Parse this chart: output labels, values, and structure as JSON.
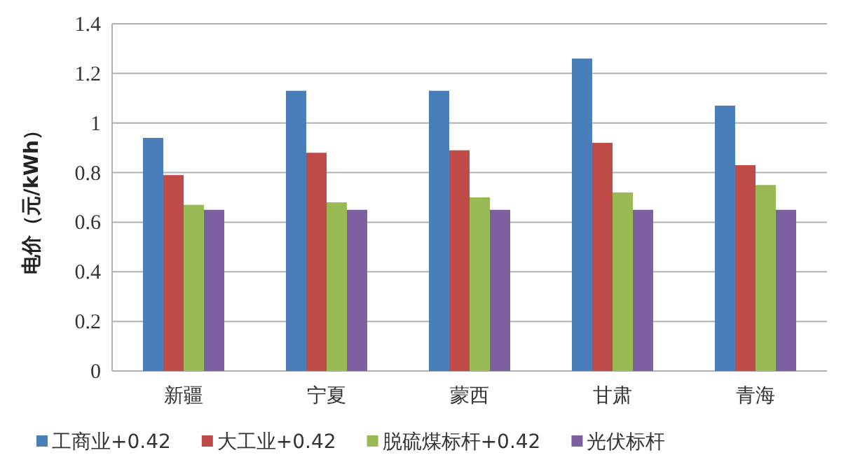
{
  "chart_data": {
    "type": "bar",
    "ylabel": "电价（元/kWh）",
    "categories": [
      "新疆",
      "宁夏",
      "蒙西",
      "甘肃",
      "青海"
    ],
    "series": [
      {
        "name": "工商业+0.42",
        "color": "#4a7ebb",
        "values": [
          0.94,
          1.13,
          1.13,
          1.26,
          1.07
        ]
      },
      {
        "name": "大工业+0.42",
        "color": "#be4b48",
        "values": [
          0.79,
          0.88,
          0.89,
          0.92,
          0.83
        ]
      },
      {
        "name": "脱硫煤标杆+0.42",
        "color": "#98b954",
        "values": [
          0.67,
          0.68,
          0.7,
          0.72,
          0.75
        ]
      },
      {
        "name": "光伏标杆",
        "color": "#7d60a0",
        "values": [
          0.65,
          0.65,
          0.65,
          0.65,
          0.65
        ]
      }
    ],
    "ylim": [
      0,
      1.4
    ],
    "yticks": [
      0,
      0.2,
      0.4,
      0.6,
      0.8,
      1,
      1.2,
      1.4
    ],
    "grid": "y",
    "legend": "bottom"
  }
}
